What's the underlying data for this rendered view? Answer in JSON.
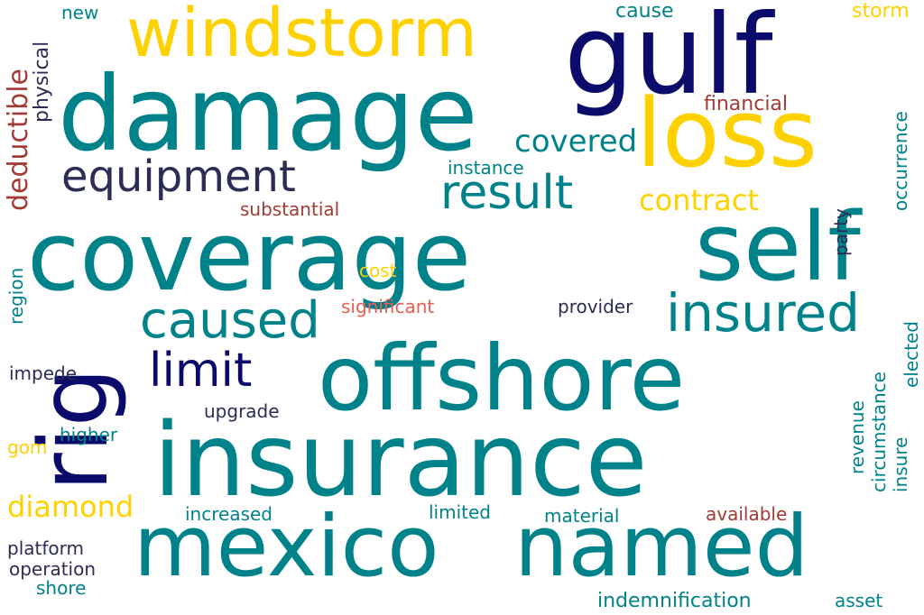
{
  "colors": {
    "teal": "#00828A",
    "navy": "#0B0B6B",
    "gold": "#FFD100",
    "slate": "#2C2D55",
    "brick": "#A23B35",
    "coral": "#EA5B52"
  },
  "words": {
    "insurance": "insurance",
    "coverage": "coverage",
    "offshore": "offshore",
    "mexico": "mexico",
    "named": "named",
    "damage": "damage",
    "self": "self",
    "gulf": "gulf",
    "loss": "loss",
    "rig": "rig",
    "windstorm": "windstorm",
    "insured": "insured",
    "caused": "caused",
    "result": "result",
    "equipment": "equipment",
    "limit": "limit",
    "covered": "covered",
    "contract": "contract",
    "diamond": "diamond",
    "deductible": "deductible",
    "physical": "physical",
    "new": "new",
    "cause": "cause",
    "storm": "storm",
    "financial": "financial",
    "instance": "instance",
    "substantial": "substantial",
    "party": "party",
    "occurrence": "occurrence",
    "cost": "cost",
    "region": "region",
    "significant": "significant",
    "provider": "provider",
    "impede": "impede",
    "upgrade": "upgrade",
    "higher": "higher",
    "gom": "gom",
    "increased": "increased",
    "limited": "limited",
    "material": "material",
    "available": "available",
    "platform": "platform",
    "operation": "operation",
    "shore": "shore",
    "indemnification": "indemnification",
    "asset": "asset",
    "revenue": "revenue",
    "circumstance": "circumstance",
    "insure": "insure",
    "elected": "elected"
  }
}
